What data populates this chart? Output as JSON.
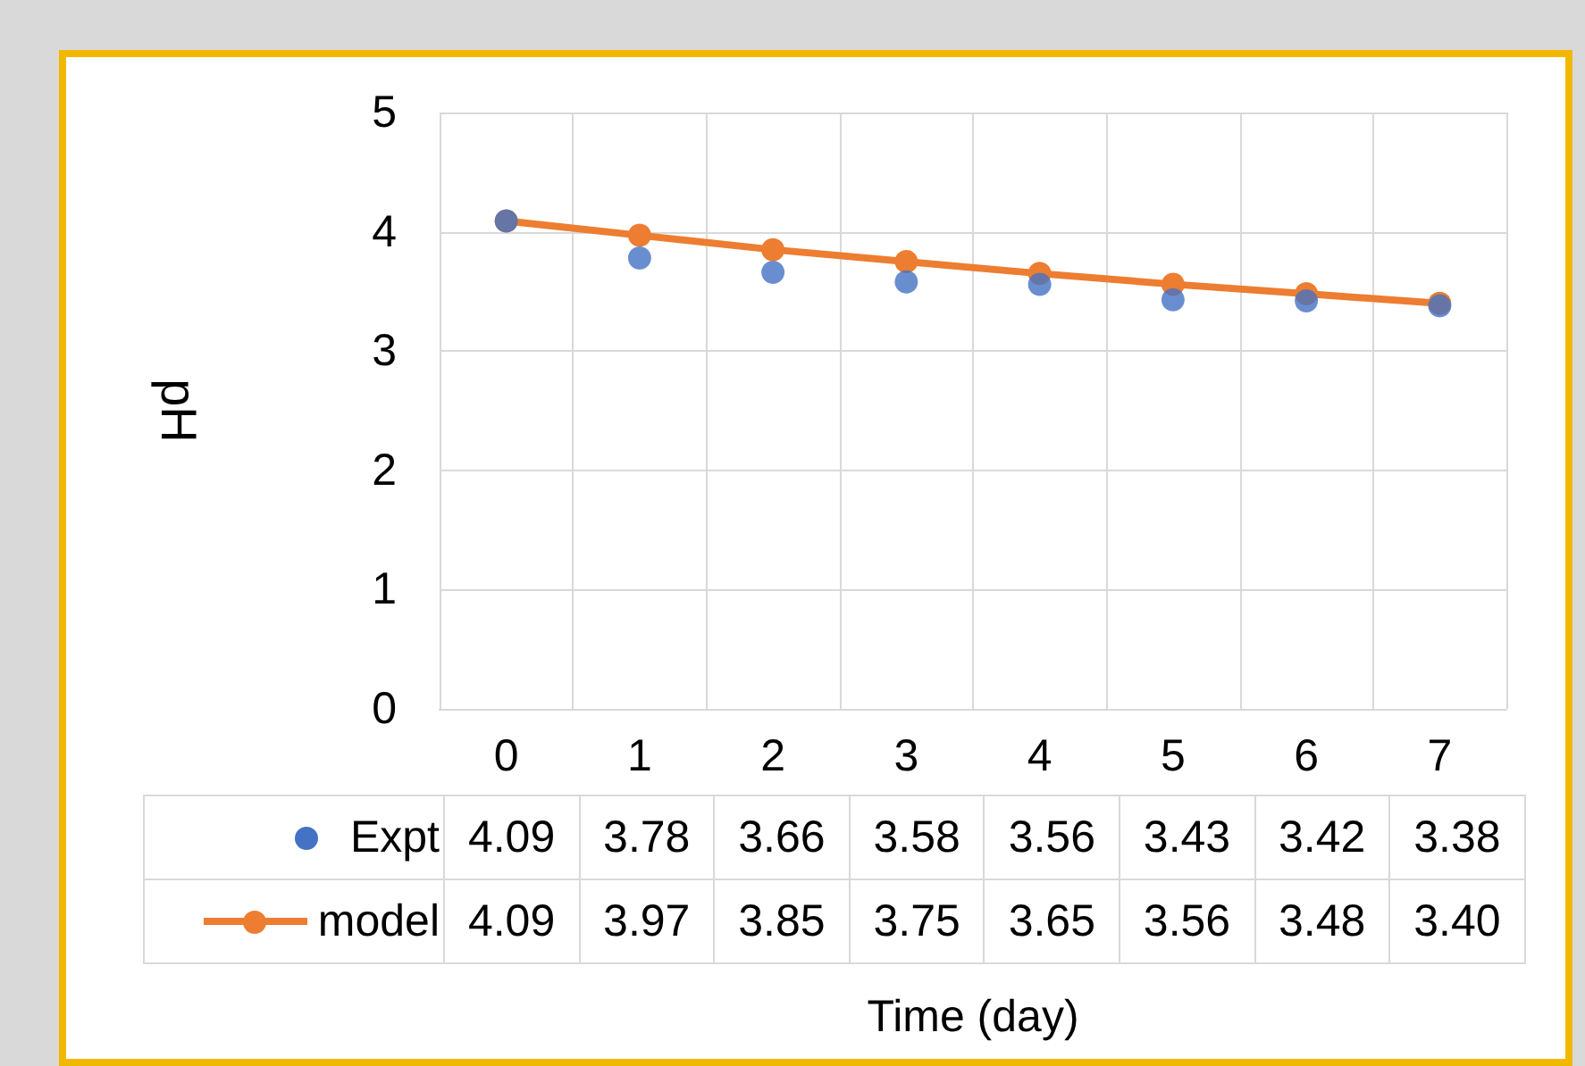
{
  "chart_data": {
    "type": "line",
    "xlabel": "Time (day)",
    "ylabel": "pH",
    "categories": [
      "0",
      "1",
      "2",
      "3",
      "4",
      "5",
      "6",
      "7"
    ],
    "series": [
      {
        "name": "Expt",
        "type": "scatter",
        "color": "#4472c4",
        "values": [
          4.09,
          3.78,
          3.66,
          3.58,
          3.56,
          3.43,
          3.42,
          3.38
        ],
        "value_labels": [
          "4.09",
          "3.78",
          "3.66",
          "3.58",
          "3.56",
          "3.43",
          "3.42",
          "3.38"
        ]
      },
      {
        "name": "model",
        "type": "line",
        "color": "#ed7d31",
        "values": [
          4.09,
          3.97,
          3.85,
          3.75,
          3.65,
          3.56,
          3.48,
          3.4
        ],
        "value_labels": [
          "4.09",
          "3.97",
          "3.85",
          "3.75",
          "3.65",
          "3.56",
          "3.48",
          "3.40"
        ]
      }
    ],
    "ylim": [
      0,
      5
    ],
    "yticks": [
      0,
      1,
      2,
      3,
      4,
      5
    ],
    "grid": true,
    "legend": "bottom left",
    "marker": "circle",
    "line_style": "solid"
  }
}
